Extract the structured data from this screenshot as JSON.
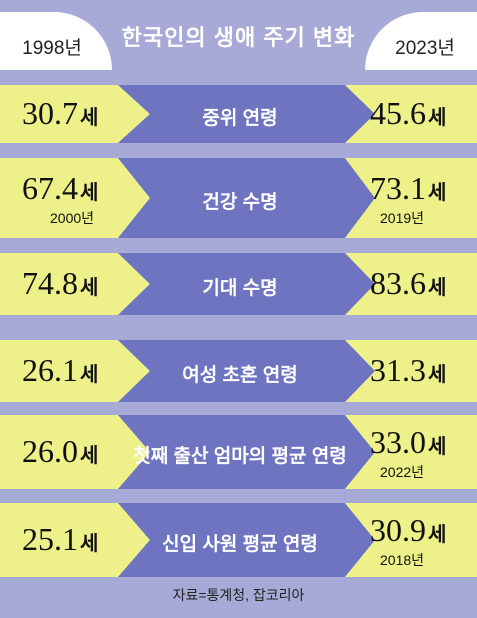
{
  "title": "한국인의 생애 주기 변화",
  "header": {
    "left_year": "1998년",
    "right_year": "2023년"
  },
  "colors": {
    "background": "#a7aad6",
    "yellow": "#eef08a",
    "arrow": "#6f74c0"
  },
  "rows": [
    {
      "label": "중위 연령",
      "left_value": "30.7",
      "left_unit": "세",
      "left_note": "",
      "right_value": "45.6",
      "right_unit": "세",
      "right_note": ""
    },
    {
      "label": "건강 수명",
      "left_value": "67.4",
      "left_unit": "세",
      "left_note": "2000년",
      "right_value": "73.1",
      "right_unit": "세",
      "right_note": "2019년"
    },
    {
      "label": "기대 수명",
      "left_value": "74.8",
      "left_unit": "세",
      "left_note": "",
      "right_value": "83.6",
      "right_unit": "세",
      "right_note": ""
    },
    {
      "label": "여성 초혼 연령",
      "left_value": "26.1",
      "left_unit": "세",
      "left_note": "",
      "right_value": "31.3",
      "right_unit": "세",
      "right_note": ""
    },
    {
      "label": "첫째 출산 엄마의 평균 연령",
      "left_value": "26.0",
      "left_unit": "세",
      "left_note": "",
      "right_value": "33.0",
      "right_unit": "세",
      "right_note": "2022년"
    },
    {
      "label": "신입 사원 평균 연령",
      "left_value": "25.1",
      "left_unit": "세",
      "left_note": "",
      "right_value": "30.9",
      "right_unit": "세",
      "right_note": "2018년"
    }
  ],
  "source": "자료=통계청, 잡코리아"
}
